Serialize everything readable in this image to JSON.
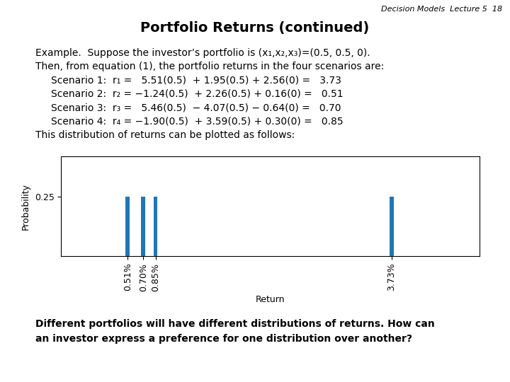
{
  "chart_data": {
    "type": "bar",
    "title": "Portfolio Returns (continued)",
    "annotations": [
      "Decision Models  Lecture 5  18",
      "Example.  Suppose the investor’s portfolio is (x₁,x₂,x₃)=(0.5, 0.5, 0).",
      "Then, from equation (1), the portfolio returns in the four scenarios are:",
      "Scenario 1:  r₁ =   5.51(0.5)  + 1.95(0.5) + 2.56(0) =   3.73",
      "Scenario 2:  r₂ = −1.24(0.5)  + 2.26(0.5) + 0.16(0) =   0.51",
      "Scenario 3:  r₃ =   5.46(0.5)  − 4.07(0.5) − 0.64(0) =   0.70",
      "Scenario 4:  r₄ = −1.90(0.5)  + 3.59(0.5) + 0.30(0) =   0.85",
      "This distribution of returns can be plotted as follows:",
      "Different portfolios will have different distributions of returns. How can",
      "an investor express a preference for one distribution over another?"
    ],
    "x": [
      0.51,
      0.7,
      0.85,
      3.73
    ],
    "values": [
      0.25,
      0.25,
      0.25,
      0.25
    ],
    "xlim": [
      -0.3,
      4.8
    ],
    "ylim": [
      0,
      0.42
    ],
    "xticks": [
      {
        "value": 0.51,
        "label": "0.51%"
      },
      {
        "value": 0.7,
        "label": "0.70%"
      },
      {
        "value": 0.85,
        "label": "0.85%"
      },
      {
        "value": 3.73,
        "label": "3.73%"
      }
    ],
    "yticks": [
      0.25
    ],
    "xlabel": "Return",
    "ylabel": "Probability"
  }
}
